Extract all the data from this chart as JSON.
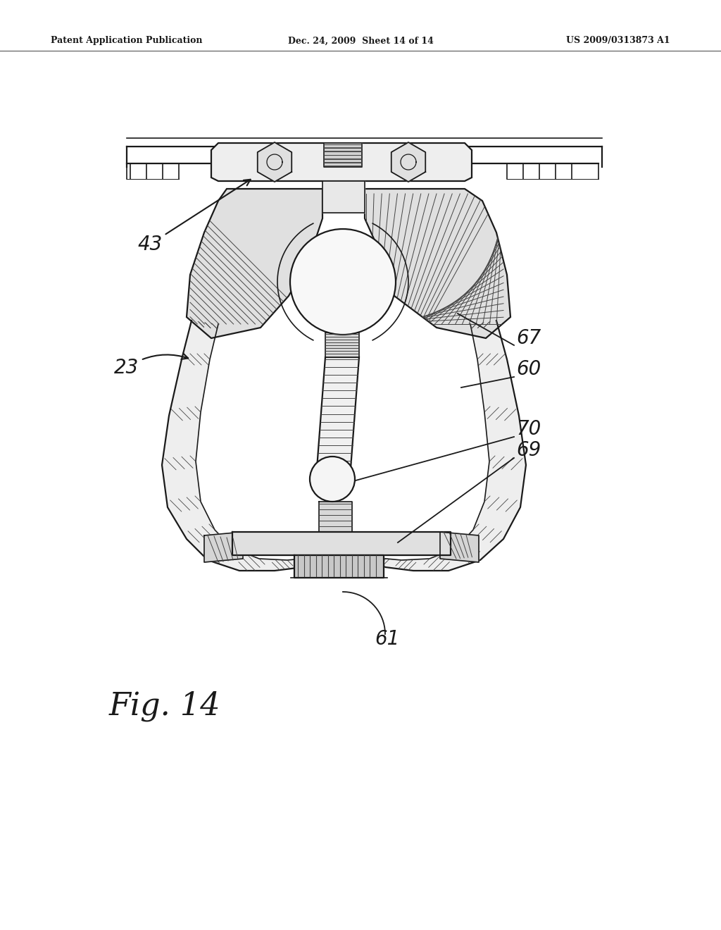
{
  "bg_color": "#ffffff",
  "header_left": "Patent Application Publication",
  "header_center": "Dec. 24, 2009  Sheet 14 of 14",
  "header_right": "US 2009/0313873 A1",
  "fig_label": "Fig. 14",
  "line_color": "#1a1a1a",
  "hatch_color": "#444444",
  "fill_light": "#f5f5f5",
  "fill_mid": "#e8e8e8"
}
